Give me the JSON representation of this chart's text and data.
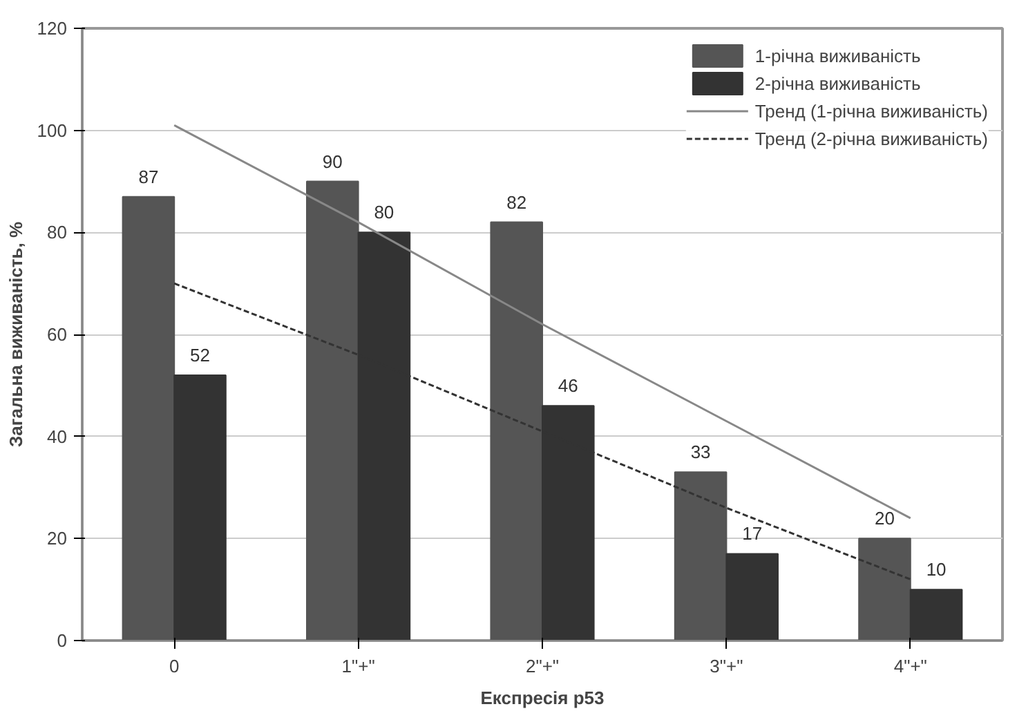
{
  "chart_data": {
    "type": "bar",
    "xlabel": "Експресія р53",
    "ylabel": "Загальна виживаність, %",
    "categories": [
      "0",
      "1\"+\"",
      "2\"+\"",
      "3\"+\"",
      "4\"+\""
    ],
    "series": [
      {
        "name": "1-річна виживаність",
        "color": "#555555",
        "values": [
          87,
          90,
          82,
          33,
          20
        ],
        "value_labels": [
          "87",
          "90",
          "82",
          "33",
          "20"
        ]
      },
      {
        "name": "2-річна виживаність",
        "color": "#333333",
        "values": [
          52,
          80,
          46,
          17,
          10
        ],
        "value_labels": [
          "52",
          "80",
          "46",
          "17",
          "10"
        ]
      },
      {
        "name": "Тренд (1-річна виживаність)",
        "type": "line",
        "line_style": "solid",
        "color": "#888888",
        "values": [
          101,
          82,
          62,
          43,
          24
        ]
      },
      {
        "name": "Тренд (2-річна виживаність)",
        "type": "line",
        "line_style": "dashed",
        "color": "#333333",
        "values": [
          70,
          56,
          41,
          26,
          12
        ]
      }
    ],
    "ylim": [
      0,
      120
    ],
    "yticks": [
      0,
      20,
      40,
      60,
      80,
      100,
      120
    ],
    "grid": "y",
    "legend": "top right"
  }
}
